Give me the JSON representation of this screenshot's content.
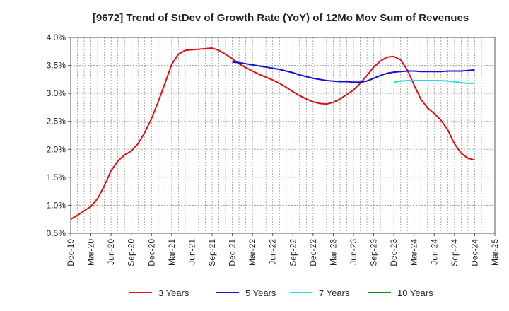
{
  "chart_data": {
    "type": "line",
    "title": "[9672]  Trend of StDev of Growth Rate (YoY) of 12Mo Mov Sum of Revenues",
    "xlabel": "",
    "ylabel": "",
    "x_tick_labels": [
      "Dec-19",
      "Mar-20",
      "Jun-20",
      "Sep-20",
      "Dec-20",
      "Mar-21",
      "Jun-21",
      "Sep-21",
      "Dec-21",
      "Mar-22",
      "Jun-22",
      "Sep-22",
      "Dec-22",
      "Mar-23",
      "Jun-23",
      "Sep-23",
      "Dec-23",
      "Mar-24",
      "Jun-24",
      "Sep-24",
      "Dec-24",
      "Mar-25"
    ],
    "y_tick_labels": [
      "0.5%",
      "1.0%",
      "1.5%",
      "2.0%",
      "2.5%",
      "3.0%",
      "3.5%",
      "4.0%"
    ],
    "y_ticks": [
      0.5,
      1.0,
      1.5,
      2.0,
      2.5,
      3.0,
      3.5,
      4.0
    ],
    "ylim": [
      0.5,
      4.0
    ],
    "x_unit": "months since Dec-19",
    "xlim": [
      0,
      63
    ],
    "grid": true,
    "legend_position": "bottom",
    "series": [
      {
        "name": "3 Years",
        "color": "#dd1111",
        "x": [
          0,
          1,
          2,
          3,
          4,
          5,
          6,
          7,
          8,
          9,
          10,
          11,
          12,
          13,
          14,
          15,
          16,
          17,
          18,
          19,
          20,
          21,
          22,
          23,
          24,
          25,
          26,
          27,
          28,
          29,
          30,
          31,
          32,
          33,
          34,
          35,
          36,
          37,
          38,
          39,
          40,
          41,
          42,
          43,
          44,
          45,
          46,
          47,
          48,
          49,
          50,
          51,
          52,
          53,
          54,
          55,
          56,
          57,
          58,
          59,
          60
        ],
        "values": [
          0.75,
          0.82,
          0.9,
          0.98,
          1.12,
          1.35,
          1.62,
          1.79,
          1.9,
          1.97,
          2.1,
          2.3,
          2.55,
          2.85,
          3.18,
          3.52,
          3.7,
          3.77,
          3.78,
          3.79,
          3.8,
          3.81,
          3.77,
          3.7,
          3.62,
          3.53,
          3.46,
          3.4,
          3.34,
          3.29,
          3.24,
          3.18,
          3.11,
          3.03,
          2.96,
          2.9,
          2.85,
          2.82,
          2.81,
          2.84,
          2.9,
          2.98,
          3.06,
          3.18,
          3.32,
          3.47,
          3.58,
          3.65,
          3.66,
          3.6,
          3.42,
          3.15,
          2.9,
          2.74,
          2.64,
          2.52,
          2.35,
          2.1,
          1.93,
          1.84,
          1.81
        ]
      },
      {
        "name": "5 Years",
        "color": "#1111cc",
        "x": [
          24,
          25,
          26,
          27,
          28,
          29,
          30,
          31,
          32,
          33,
          34,
          35,
          36,
          37,
          38,
          39,
          40,
          41,
          42,
          43,
          44,
          45,
          46,
          47,
          48,
          49,
          50,
          51,
          52,
          53,
          54,
          55,
          56,
          57,
          58,
          59,
          60
        ],
        "values": [
          3.56,
          3.55,
          3.53,
          3.51,
          3.49,
          3.47,
          3.45,
          3.43,
          3.4,
          3.37,
          3.33,
          3.3,
          3.27,
          3.25,
          3.23,
          3.22,
          3.21,
          3.21,
          3.2,
          3.2,
          3.22,
          3.27,
          3.32,
          3.36,
          3.38,
          3.39,
          3.4,
          3.4,
          3.39,
          3.39,
          3.39,
          3.39,
          3.4,
          3.4,
          3.4,
          3.41,
          3.42
        ]
      },
      {
        "name": "7 Years",
        "color": "#22dddd",
        "x": [
          48,
          49,
          50,
          51,
          52,
          53,
          54,
          55,
          56,
          57,
          58,
          59,
          60
        ],
        "values": [
          3.2,
          3.22,
          3.23,
          3.23,
          3.23,
          3.23,
          3.23,
          3.23,
          3.22,
          3.21,
          3.19,
          3.18,
          3.18
        ]
      },
      {
        "name": "10 Years",
        "color": "#118811",
        "x": [],
        "values": []
      }
    ]
  }
}
